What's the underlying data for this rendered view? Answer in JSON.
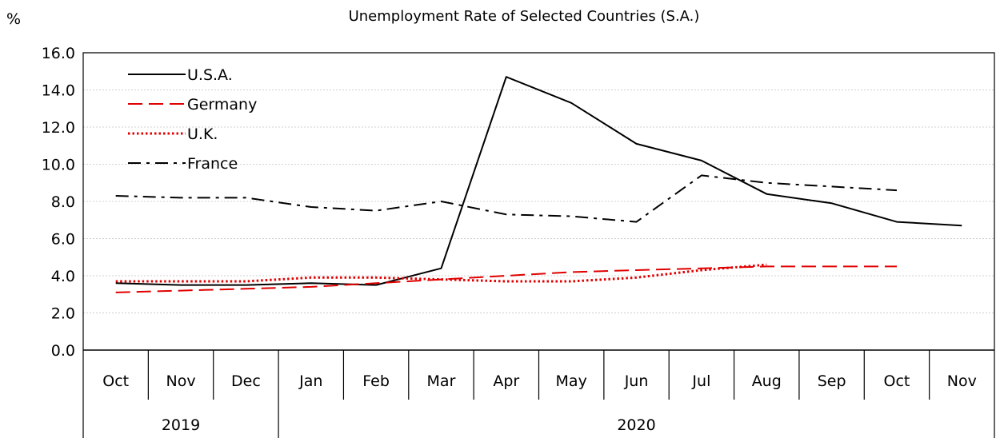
{
  "chart_data": {
    "type": "line",
    "title": "Unemployment Rate of Selected Countries (S.A.)",
    "ylabel": "%",
    "ylim": [
      0,
      16
    ],
    "yticks": [
      "0.0",
      "2.0",
      "4.0",
      "6.0",
      "8.0",
      "10.0",
      "12.0",
      "14.0",
      "16.0"
    ],
    "categories": [
      "Oct",
      "Nov",
      "Dec",
      "Jan",
      "Feb",
      "Mar",
      "Apr",
      "May",
      "Jun",
      "Jul",
      "Aug",
      "Sep",
      "Oct",
      "Nov"
    ],
    "year_groups": [
      {
        "label": "2019",
        "count": 3
      },
      {
        "label": "2020",
        "count": 11
      }
    ],
    "grid": "horizontal",
    "legend_position": "top-left",
    "series": [
      {
        "name": "U.S.A.",
        "color": "#000000",
        "dash": "solid",
        "values": [
          3.6,
          3.5,
          3.5,
          3.6,
          3.5,
          4.4,
          14.7,
          13.3,
          11.1,
          10.2,
          8.4,
          7.9,
          6.9,
          6.7
        ]
      },
      {
        "name": "Germany",
        "color": "#e00000",
        "dash": "dashed",
        "values": [
          3.1,
          3.2,
          3.3,
          3.4,
          3.6,
          3.8,
          4.0,
          4.2,
          4.3,
          4.4,
          4.5,
          4.5,
          4.5,
          null
        ]
      },
      {
        "name": "U.K.",
        "color": "#e00000",
        "dash": "dotted",
        "values": [
          3.7,
          3.7,
          3.7,
          3.9,
          3.9,
          3.8,
          3.7,
          3.7,
          3.9,
          4.3,
          4.6,
          null,
          null,
          null
        ]
      },
      {
        "name": "France",
        "color": "#000000",
        "dash": "dashdot",
        "values": [
          8.3,
          8.2,
          8.2,
          7.7,
          7.5,
          8.0,
          7.3,
          7.2,
          6.9,
          9.4,
          9.0,
          8.8,
          8.6,
          null
        ]
      }
    ]
  }
}
